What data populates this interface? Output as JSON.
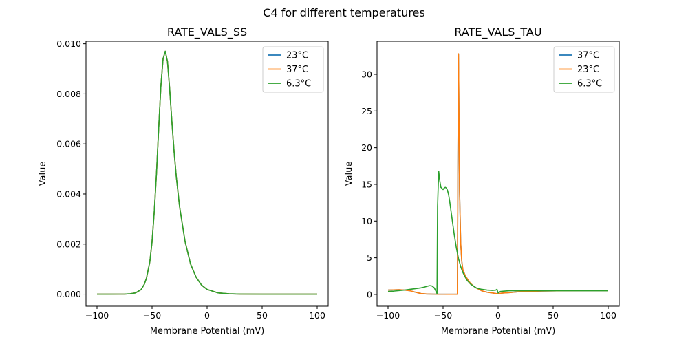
{
  "figure_title": "C4 for different temperatures",
  "chart_data": [
    {
      "type": "line",
      "title": "RATE_VALS_SS",
      "xlabel": "Membrane Potential (mV)",
      "ylabel": "Value",
      "xlim": [
        -110,
        110
      ],
      "ylim": [
        -0.00048,
        0.0101
      ],
      "xticks": [
        -100,
        -50,
        0,
        50,
        100
      ],
      "xtick_labels": [
        "−100",
        "−50",
        "0",
        "50",
        "100"
      ],
      "yticks": [
        0,
        0.002,
        0.004,
        0.006,
        0.008,
        0.01
      ],
      "ytick_labels": [
        "0.000",
        "0.002",
        "0.004",
        "0.006",
        "0.008",
        "0.010"
      ],
      "legend_position": "top-right",
      "series": [
        {
          "name": "23°C",
          "color": "#1f77b4",
          "x": [
            -100,
            -90,
            -80,
            -75,
            -70,
            -65,
            -60,
            -57,
            -55,
            -52,
            -50,
            -48,
            -46,
            -44,
            -42,
            -40,
            -38,
            -36,
            -34,
            -32,
            -30,
            -28,
            -25,
            -20,
            -15,
            -10,
            -5,
            0,
            10,
            20,
            30,
            50,
            70,
            100
          ],
          "y": [
            0,
            0,
            1e-06,
            4e-06,
            1.5e-05,
            5e-05,
            0.00018,
            0.0004,
            0.00065,
            0.0013,
            0.0021,
            0.0033,
            0.0048,
            0.0066,
            0.0083,
            0.0094,
            0.0097,
            0.0093,
            0.0082,
            0.0069,
            0.0057,
            0.0047,
            0.0035,
            0.0021,
            0.0012,
            0.00068,
            0.00036,
            0.00019,
            5e-05,
            1.3e-05,
            3e-06,
            0,
            0,
            0
          ]
        },
        {
          "name": "37°C",
          "color": "#ff7f0e",
          "x": [
            -100,
            -90,
            -80,
            -75,
            -70,
            -65,
            -60,
            -57,
            -55,
            -52,
            -50,
            -48,
            -46,
            -44,
            -42,
            -40,
            -38,
            -36,
            -34,
            -32,
            -30,
            -28,
            -25,
            -20,
            -15,
            -10,
            -5,
            0,
            10,
            20,
            30,
            50,
            70,
            100
          ],
          "y": [
            0,
            0,
            1e-06,
            4e-06,
            1.5e-05,
            5e-05,
            0.00018,
            0.0004,
            0.00065,
            0.0013,
            0.0021,
            0.0033,
            0.0048,
            0.0066,
            0.0083,
            0.0094,
            0.0097,
            0.0093,
            0.0082,
            0.0069,
            0.0057,
            0.0047,
            0.0035,
            0.0021,
            0.0012,
            0.00068,
            0.00036,
            0.00019,
            5e-05,
            1.3e-05,
            3e-06,
            0,
            0,
            0
          ]
        },
        {
          "name": "6.3°C",
          "color": "#2ca02c",
          "x": [
            -100,
            -90,
            -80,
            -75,
            -70,
            -65,
            -60,
            -57,
            -55,
            -52,
            -50,
            -48,
            -46,
            -44,
            -42,
            -40,
            -38,
            -36,
            -34,
            -32,
            -30,
            -28,
            -25,
            -20,
            -15,
            -10,
            -5,
            0,
            10,
            20,
            30,
            50,
            70,
            100
          ],
          "y": [
            0,
            0,
            1e-06,
            4e-06,
            1.5e-05,
            5e-05,
            0.00018,
            0.0004,
            0.00065,
            0.0013,
            0.0021,
            0.0033,
            0.0048,
            0.0066,
            0.0083,
            0.0094,
            0.0097,
            0.0093,
            0.0082,
            0.0069,
            0.0057,
            0.0047,
            0.0035,
            0.0021,
            0.0012,
            0.00068,
            0.00036,
            0.00019,
            5e-05,
            1.3e-05,
            3e-06,
            0,
            0,
            0
          ]
        }
      ]
    },
    {
      "type": "line",
      "title": "RATE_VALS_TAU",
      "xlabel": "Membrane Potential (mV)",
      "ylabel": "Value",
      "xlim": [
        -110,
        110
      ],
      "ylim": [
        -1.6,
        34.5
      ],
      "xticks": [
        -100,
        -50,
        0,
        50,
        100
      ],
      "xtick_labels": [
        "−100",
        "−50",
        "0",
        "50",
        "100"
      ],
      "yticks": [
        0,
        5,
        10,
        15,
        20,
        25,
        30
      ],
      "ytick_labels": [
        "0",
        "5",
        "10",
        "15",
        "20",
        "25",
        "30"
      ],
      "legend_position": "top-right",
      "series": [
        {
          "name": "37°C",
          "color": "#1f77b4",
          "x": [
            -100,
            -90,
            -85,
            -80,
            -75,
            -70,
            -65,
            -60,
            -55,
            -50,
            -45,
            -40,
            -37,
            -36.5,
            -36,
            -35,
            -34,
            -33,
            -32,
            -30,
            -27,
            -25,
            -22,
            -20,
            -15,
            -10,
            -5,
            -1,
            0,
            2,
            5,
            10,
            20,
            40,
            60,
            80,
            100
          ],
          "y": [
            0.6,
            0.65,
            0.6,
            0.5,
            0.3,
            0.12,
            0.06,
            0.04,
            0.03,
            0.03,
            0.02,
            0.02,
            0.03,
            18,
            32.8,
            14,
            7,
            4.5,
            3.4,
            2.6,
            1.9,
            1.5,
            1.1,
            0.9,
            0.5,
            0.3,
            0.2,
            0.1,
            0.1,
            0.15,
            0.2,
            0.25,
            0.38,
            0.47,
            0.5,
            0.52,
            0.52
          ]
        },
        {
          "name": "23°C",
          "color": "#ff7f0e",
          "x": [
            -100,
            -90,
            -85,
            -80,
            -75,
            -70,
            -65,
            -60,
            -55,
            -50,
            -45,
            -40,
            -37,
            -36.5,
            -36,
            -35,
            -34,
            -33,
            -32,
            -30,
            -27,
            -25,
            -22,
            -20,
            -15,
            -10,
            -5,
            -1,
            0,
            2,
            5,
            10,
            20,
            40,
            60,
            80,
            100
          ],
          "y": [
            0.6,
            0.65,
            0.6,
            0.5,
            0.3,
            0.12,
            0.06,
            0.04,
            0.03,
            0.03,
            0.02,
            0.02,
            0.03,
            18,
            32.8,
            14,
            7,
            4.5,
            3.4,
            2.6,
            1.9,
            1.5,
            1.1,
            0.9,
            0.5,
            0.3,
            0.2,
            0.1,
            0.1,
            0.15,
            0.2,
            0.25,
            0.38,
            0.47,
            0.5,
            0.52,
            0.52
          ]
        },
        {
          "name": "6.3°C",
          "color": "#2ca02c",
          "x": [
            -100,
            -95,
            -90,
            -85,
            -80,
            -75,
            -70,
            -67,
            -65,
            -62,
            -60,
            -58,
            -56,
            -55.5,
            -55,
            -54,
            -53,
            -52,
            -50,
            -49,
            -48,
            -47,
            -46,
            -45,
            -44,
            -42,
            -40,
            -38,
            -36,
            -34,
            -32,
            -30,
            -28,
            -25,
            -22,
            -20,
            -15,
            -10,
            -5,
            -2,
            -1,
            0,
            1,
            2,
            5,
            10,
            20,
            40,
            60,
            80,
            100
          ],
          "y": [
            0.4,
            0.45,
            0.52,
            0.6,
            0.7,
            0.8,
            0.9,
            1.0,
            1.1,
            1.2,
            1.15,
            0.9,
            0.3,
            0.1,
            12,
            16.8,
            15.5,
            14.6,
            14.3,
            14.5,
            14.6,
            14.5,
            14.2,
            13.6,
            12.7,
            10.5,
            8.3,
            6.4,
            4.9,
            3.8,
            3.0,
            2.4,
            1.9,
            1.4,
            1.1,
            0.9,
            0.7,
            0.6,
            0.55,
            0.6,
            0.7,
            0.2,
            0.3,
            0.4,
            0.45,
            0.5,
            0.5,
            0.5,
            0.5,
            0.5,
            0.5
          ]
        }
      ]
    }
  ]
}
